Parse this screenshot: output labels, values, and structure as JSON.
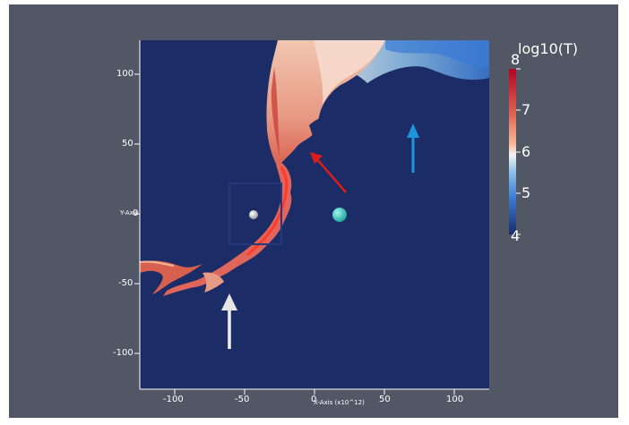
{
  "plot": {
    "x_axis_title": "X-Axis (x10^12)",
    "y_axis_title": "Y-Axis",
    "x_ticks": [
      "-100",
      "-50",
      "0",
      "50",
      "100"
    ],
    "y_ticks": [
      "100",
      "50",
      "0",
      "-50",
      "-100"
    ],
    "background_color": "#1c2c66",
    "viewport_color": "#525766"
  },
  "colorbar": {
    "title": "log10(T)",
    "labels": [
      "8",
      "7",
      "6",
      "5",
      "4"
    ],
    "colors": [
      "#b40426",
      "#dd5b4c",
      "#f7b79a",
      "#f2f2f2",
      "#8fc1e8",
      "#3a7bd5",
      "#1c2c66"
    ]
  },
  "annotations": {
    "red_arrow_color": "#dd1c1c",
    "blue_arrow_color": "#1e96dc",
    "white_arrow_color": "#f0f0f0",
    "grey_sphere_icon": "grey-sphere-icon",
    "teal_sphere_icon": "teal-sphere-icon"
  }
}
